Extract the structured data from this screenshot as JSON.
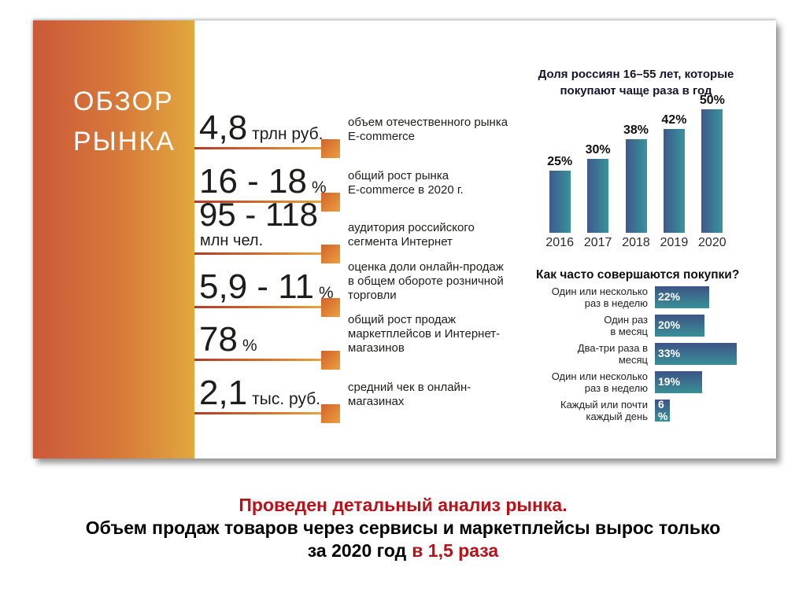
{
  "sidebar": {
    "title": "ОБЗОР\nРЫНКА"
  },
  "stats": [
    {
      "value": "4,8",
      "unit": "трлн руб.",
      "desc": "объем отечественного рынка\nE-commerce"
    },
    {
      "value": "16 - 18",
      "unit": "%",
      "desc": "общий рост рынка\nE-commerce в 2020 г."
    },
    {
      "value": "95 - 118",
      "unit": "млн чел.",
      "desc": "аудитория российского\nсегмента Интернет"
    },
    {
      "value": "5,9 - 11",
      "unit": "%",
      "desc": "оценка доли онлайн-продаж\nв общем обороте розничной\nторговли"
    },
    {
      "value": "78",
      "unit": "%",
      "desc": "общий рост продаж\nмаркетплейсов и Интернет-\nмагазинов"
    },
    {
      "value": "2,1",
      "unit": "тыс. руб.",
      "desc": "средний чек в онлайн-\nмагазинах"
    }
  ],
  "chart_data": [
    {
      "type": "bar",
      "orientation": "vertical",
      "title": "Доля россиян 16–55 лет, которые\nпокупают чаще раза в год",
      "categories": [
        "2016",
        "2017",
        "2018",
        "2019",
        "2020"
      ],
      "values": [
        25,
        30,
        38,
        42,
        50
      ],
      "value_labels": [
        "25%",
        "30%",
        "38%",
        "42%",
        "50%"
      ],
      "ylim": [
        0,
        55
      ],
      "grid": false,
      "legend": "none"
    },
    {
      "type": "bar",
      "orientation": "horizontal",
      "title": "Как часто совершаются покупки?",
      "categories": [
        "Один или несколько\nраз в неделю",
        "Один раз\nв месяц",
        "Два-три раза в\nмесяц",
        "Один или несколько\nраз в неделю",
        "Каждый или почти\nкаждый день"
      ],
      "values": [
        22,
        20,
        33,
        19,
        6
      ],
      "value_labels": [
        "22%",
        "20%",
        "33%",
        "19%",
        "6 %"
      ],
      "xlim": [
        0,
        35
      ],
      "grid": false,
      "legend": "none"
    }
  ],
  "caption": {
    "line1": "Проведен детальный анализ рынка.",
    "line2": "Объем продаж товаров через сервисы и маркетплейсы вырос только",
    "line3_black": "за 2020 год",
    "line3_red": "в 1,5 раза"
  },
  "colors": {
    "accent_red": "#b5121a",
    "sidebar_gradient": [
      "#cc5939",
      "#e2a83d"
    ],
    "stat_line_gradient": [
      "#b33b28",
      "#e6a63e"
    ],
    "marker_orange": [
      "#d2622c",
      "#ec9f3e"
    ],
    "bar_gradient": [
      "#3e5a8c",
      "#37939c"
    ]
  }
}
